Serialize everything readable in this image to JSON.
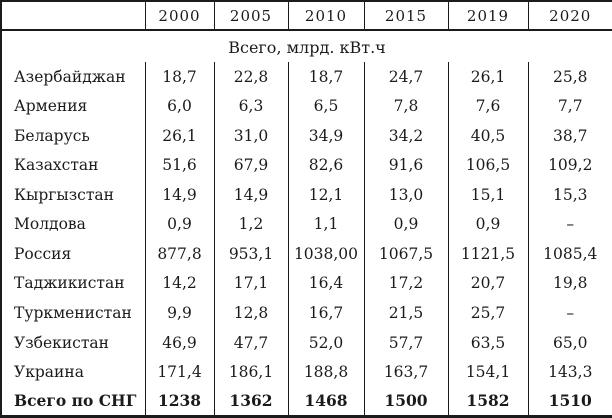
{
  "chart_data": {
    "type": "table",
    "unit_header": "Всего, млрд. кВт.ч",
    "columns": [
      "2000",
      "2005",
      "2010",
      "2015",
      "2019",
      "2020"
    ],
    "rows": [
      {
        "name": "Азербайджан",
        "values": [
          "18,7",
          "22,8",
          "18,7",
          "24,7",
          "26,1",
          "25,8"
        ]
      },
      {
        "name": "Армения",
        "values": [
          "6,0",
          "6,3",
          "6,5",
          "7,8",
          "7,6",
          "7,7"
        ]
      },
      {
        "name": "Беларусь",
        "values": [
          "26,1",
          "31,0",
          "34,9",
          "34,2",
          "40,5",
          "38,7"
        ]
      },
      {
        "name": "Казахстан",
        "values": [
          "51,6",
          "67,9",
          "82,6",
          "91,6",
          "106,5",
          "109,2"
        ]
      },
      {
        "name": "Кыргызстан",
        "values": [
          "14,9",
          "14,9",
          "12,1",
          "13,0",
          "15,1",
          "15,3"
        ]
      },
      {
        "name": "Молдова",
        "values": [
          "0,9",
          "1,2",
          "1,1",
          "0,9",
          "0,9",
          "–"
        ]
      },
      {
        "name": "Россия",
        "values": [
          "877,8",
          "953,1",
          "1038,00",
          "1067,5",
          "1121,5",
          "1085,4"
        ]
      },
      {
        "name": "Таджикистан",
        "values": [
          "14,2",
          "17,1",
          "16,4",
          "17,2",
          "20,7",
          "19,8"
        ]
      },
      {
        "name": "Туркменистан",
        "values": [
          "9,9",
          "12,8",
          "16,7",
          "21,5",
          "25,7",
          "–"
        ]
      },
      {
        "name": "Узбекистан",
        "values": [
          "46,9",
          "47,7",
          "52,0",
          "57,7",
          "63,5",
          "65,0"
        ]
      },
      {
        "name": "Украина",
        "values": [
          "171,4",
          "186,1",
          "188,8",
          "163,7",
          "154,1",
          "143,3"
        ]
      }
    ],
    "total_row": {
      "name": "Всего по СНГ",
      "values": [
        "1238",
        "1362",
        "1468",
        "1500",
        "1582",
        "1510"
      ]
    },
    "layout": {
      "grid": "vertical-lines-only",
      "text_color": "#1b1b1b",
      "background": "#ffffff"
    }
  }
}
